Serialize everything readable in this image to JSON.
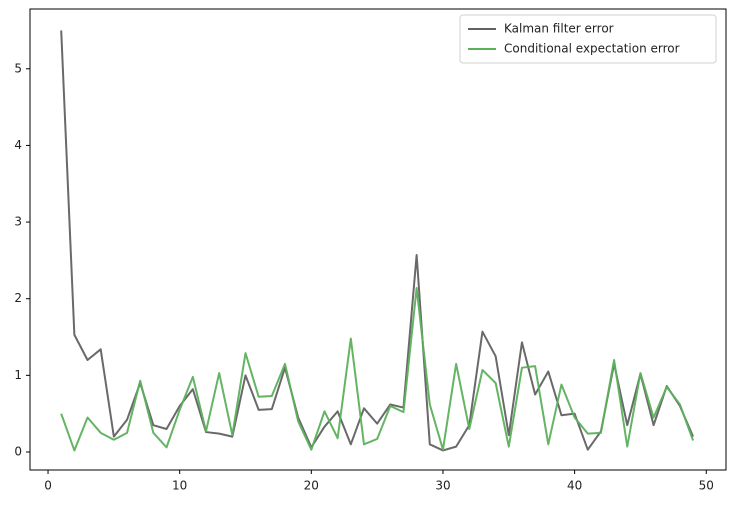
{
  "chart_data": {
    "type": "line",
    "x": [
      1,
      2,
      3,
      4,
      5,
      6,
      7,
      8,
      9,
      10,
      11,
      12,
      13,
      14,
      15,
      16,
      17,
      18,
      19,
      20,
      21,
      22,
      23,
      24,
      25,
      26,
      27,
      28,
      29,
      30,
      31,
      32,
      33,
      34,
      35,
      36,
      37,
      38,
      39,
      40,
      41,
      42,
      43,
      44,
      45,
      46,
      47,
      48,
      49
    ],
    "series": [
      {
        "name": "Kalman filter error",
        "color": "#616161",
        "values": [
          5.5,
          1.53,
          1.2,
          1.34,
          0.2,
          0.42,
          0.9,
          0.35,
          0.3,
          0.6,
          0.82,
          0.26,
          0.24,
          0.2,
          1.0,
          0.55,
          0.56,
          1.1,
          0.45,
          0.06,
          0.33,
          0.53,
          0.1,
          0.57,
          0.37,
          0.62,
          0.58,
          2.57,
          0.1,
          0.02,
          0.07,
          0.35,
          1.57,
          1.25,
          0.22,
          1.43,
          0.75,
          1.05,
          0.48,
          0.5,
          0.03,
          0.27,
          1.15,
          0.35,
          1.02,
          0.35,
          0.86,
          0.6,
          0.2
        ]
      },
      {
        "name": "Conditional expectation error",
        "color": "#5cb05c",
        "values": [
          0.5,
          0.02,
          0.45,
          0.25,
          0.16,
          0.25,
          0.93,
          0.25,
          0.06,
          0.55,
          0.98,
          0.27,
          1.03,
          0.22,
          1.29,
          0.72,
          0.73,
          1.15,
          0.4,
          0.03,
          0.53,
          0.18,
          1.48,
          0.1,
          0.17,
          0.6,
          0.52,
          2.14,
          0.62,
          0.03,
          1.15,
          0.3,
          1.07,
          0.9,
          0.07,
          1.1,
          1.12,
          0.1,
          0.88,
          0.45,
          0.24,
          0.25,
          1.2,
          0.07,
          1.03,
          0.45,
          0.85,
          0.62,
          0.15
        ]
      }
    ],
    "xlim": [
      -1.37,
      51.5
    ],
    "xticks": [
      0,
      10,
      20,
      30,
      40,
      50
    ],
    "ylim": [
      -0.235,
      5.78
    ],
    "yticks": [
      0,
      1,
      2,
      3,
      4,
      5
    ],
    "grid": false,
    "legend": "upper-right"
  }
}
